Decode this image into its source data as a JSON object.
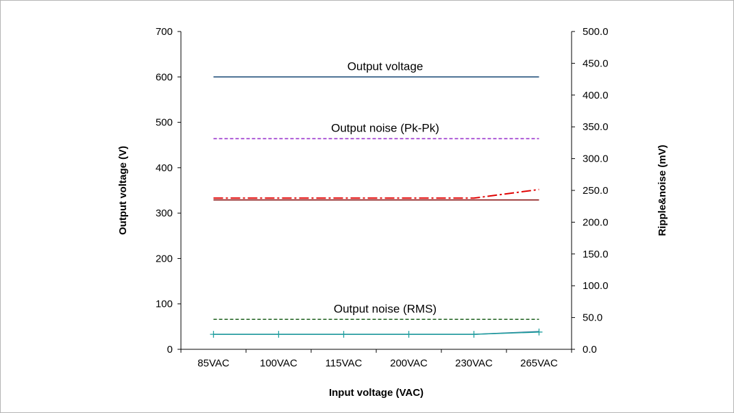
{
  "chart_data": {
    "type": "line",
    "categories": [
      "85VAC",
      "100VAC",
      "115VAC",
      "200VAC",
      "230VAC",
      "265VAC"
    ],
    "xlabel": "Input voltage (VAC)",
    "ylabel": "Output voltage (V)",
    "y2label": "Ripple&noise (mV)",
    "ylim": [
      0,
      700
    ],
    "y2lim": [
      0,
      500
    ],
    "yticks": [
      "0",
      "100",
      "200",
      "300",
      "400",
      "500",
      "600",
      "700"
    ],
    "y2ticks": [
      "0.0",
      "50.0",
      "100.0",
      "150.0",
      "200.0",
      "250.0",
      "300.0",
      "350.0",
      "400.0",
      "450.0",
      "500.0"
    ],
    "grid": false,
    "annotations": [
      {
        "text": "Output voltage",
        "at_series": 0
      },
      {
        "text": "Output noise (Pk-Pk)",
        "at_series": 1
      },
      {
        "text": "Output noise (RMS)",
        "at_series": 2
      }
    ],
    "series": [
      {
        "axis": "left",
        "color": "#1f4e79",
        "dash": "solid",
        "values": [
          600,
          600,
          600,
          600,
          600,
          600
        ]
      },
      {
        "axis": "left",
        "color": "#9933cc",
        "dash": "dashed",
        "values": [
          464,
          464,
          464,
          464,
          464,
          464
        ]
      },
      {
        "axis": "left",
        "color": "#1a5c1a",
        "dash": "dashed",
        "values": [
          66,
          66,
          66,
          66,
          66,
          66
        ]
      },
      {
        "axis": "left",
        "color": "#8b1a1a",
        "dash": "solid",
        "values": [
          329,
          329,
          329,
          329,
          329,
          329
        ]
      },
      {
        "axis": "left",
        "color": "#e00000",
        "dash": "dashdot",
        "values": [
          333,
          333,
          333,
          333,
          333,
          352
        ]
      },
      {
        "axis": "left",
        "color": "#1f5a8a",
        "dash": "solid",
        "values": [
          33,
          33,
          33,
          33,
          33,
          39
        ]
      },
      {
        "axis": "left",
        "color": "#20a0a0",
        "dash": "solid",
        "marker": "plus",
        "values": [
          33,
          33,
          33,
          33,
          33,
          38
        ]
      }
    ]
  }
}
